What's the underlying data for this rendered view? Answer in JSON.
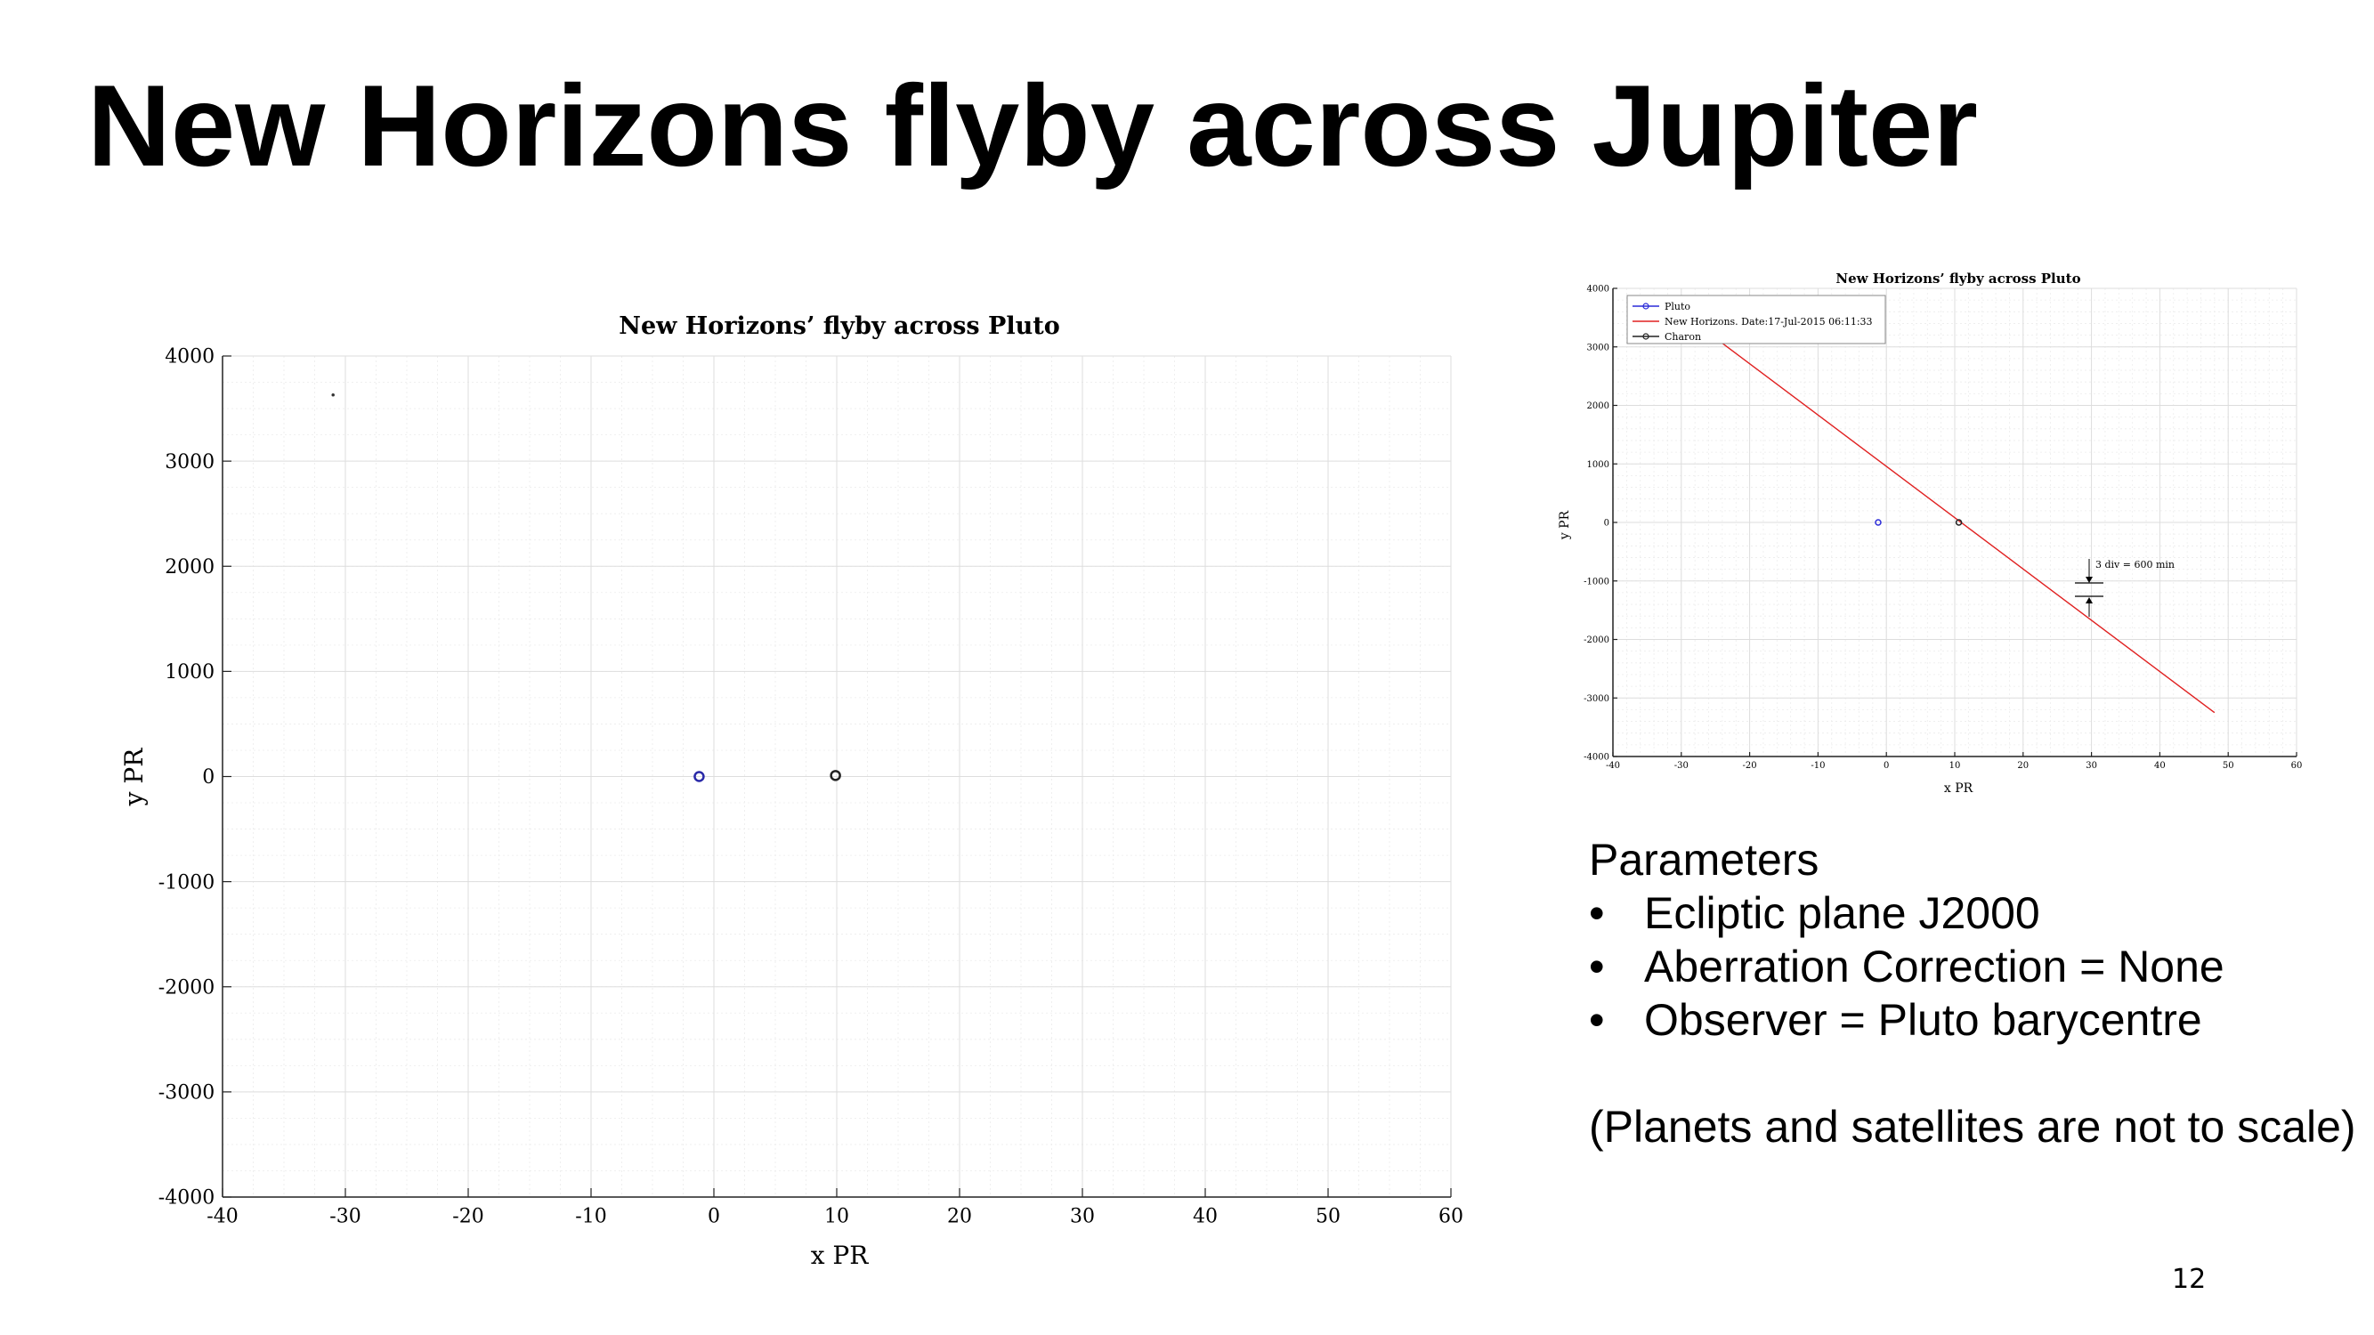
{
  "slide": {
    "title": "New Horizons flyby across Jupiter",
    "page_number": "12"
  },
  "parameters": {
    "heading": "Parameters",
    "bullets": [
      "Ecliptic plane J2000",
      "Aberration Correction = None",
      "Observer = Pluto barycentre"
    ],
    "note": "(Planets and satellites are not to scale)"
  },
  "chart_data": [
    {
      "type": "scatter",
      "title": "New Horizons’ flyby across Pluto",
      "xlabel": "x PR",
      "ylabel": "y PR",
      "xlim": [
        -40,
        60
      ],
      "ylim": [
        -4000,
        4000
      ],
      "xticks": [
        -40,
        -30,
        -20,
        -10,
        0,
        10,
        20,
        30,
        40,
        50,
        60
      ],
      "yticks": [
        -4000,
        -3000,
        -2000,
        -1000,
        0,
        1000,
        2000,
        3000,
        4000
      ],
      "grid": true,
      "series": [
        {
          "color": "#2a2aa8",
          "marker": "circle",
          "points": [
            [
              -1.2,
              0
            ]
          ]
        },
        {
          "color": "#222222",
          "marker": "circle",
          "points": [
            [
              9.9,
              10
            ]
          ]
        },
        {
          "color": "#333333",
          "marker": "dot",
          "points": [
            [
              -31,
              3630
            ]
          ]
        }
      ]
    },
    {
      "type": "line",
      "title": "New Horizons’ flyby across Pluto",
      "xlabel": "x PR",
      "ylabel": "y PR",
      "xlim": [
        -40,
        60
      ],
      "ylim": [
        -4000,
        4000
      ],
      "xticks": [
        -40,
        -30,
        -20,
        -10,
        0,
        10,
        20,
        30,
        40,
        50,
        60
      ],
      "yticks": [
        -4000,
        -3000,
        -2000,
        -1000,
        0,
        1000,
        2000,
        3000,
        4000
      ],
      "grid": true,
      "legend_position": "top-left",
      "annotation": "3 div  =  600 min",
      "series": [
        {
          "name": "Pluto",
          "color": "#2b2bd8",
          "marker": "circle",
          "points": [
            [
              -1.2,
              0
            ]
          ]
        },
        {
          "name": "New Horizons.  Date:17-Jul-2015 06:11:33",
          "color": "#e02020",
          "marker": "none",
          "points": [
            [
              -25,
              3150
            ],
            [
              48,
              -3250
            ]
          ]
        },
        {
          "name": "Charon",
          "color": "#222222",
          "marker": "circle",
          "points": [
            [
              10.6,
              0
            ]
          ]
        }
      ]
    }
  ]
}
